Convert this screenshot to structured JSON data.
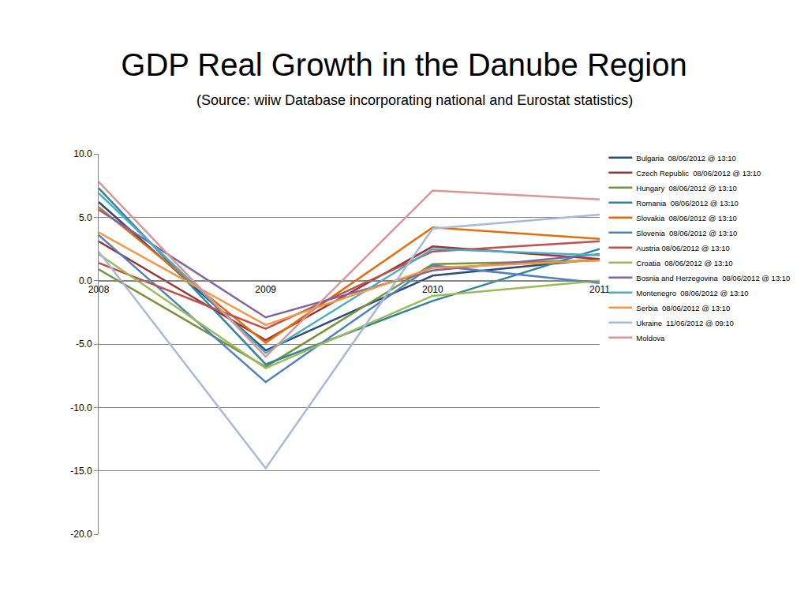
{
  "chart_data": {
    "type": "line",
    "title": "GDP Real Growth in the Danube Region",
    "subtitle": "(Source: wiiw Database incorporating national and Eurostat statistics)",
    "categories": [
      "2008",
      "2009",
      "2010",
      "2011"
    ],
    "series": [
      {
        "name": "Bulgaria  08/06/2012 @ 13:10",
        "color": "#2C4D75",
        "values": [
          6.2,
          -5.5,
          0.4,
          1.7
        ]
      },
      {
        "name": "Czech Republic  08/06/2012 @ 13:10",
        "color": "#953735",
        "values": [
          3.1,
          -4.7,
          2.7,
          1.7
        ]
      },
      {
        "name": "Hungary  08/06/2012 @ 13:10",
        "color": "#77933C",
        "values": [
          0.9,
          -6.8,
          1.3,
          1.6
        ]
      },
      {
        "name": "Romania  08/06/2012 @ 13:10",
        "color": "#31859C",
        "values": [
          7.3,
          -6.6,
          -1.6,
          2.5
        ]
      },
      {
        "name": "Slovakia  08/06/2012 @ 13:10",
        "color": "#E46C0A",
        "values": [
          5.8,
          -4.9,
          4.2,
          3.3
        ]
      },
      {
        "name": "Slovenia  08/06/2012 @ 13:10",
        "color": "#4F81BD",
        "values": [
          3.6,
          -8.0,
          1.2,
          -0.2
        ]
      },
      {
        "name": "Austria 08/06/2012 @ 13:10",
        "color": "#C0504D",
        "values": [
          1.4,
          -3.8,
          2.3,
          3.1
        ]
      },
      {
        "name": "Croatia  08/06/2012 @ 13:10",
        "color": "#9BBB59",
        "values": [
          2.1,
          -6.9,
          -1.2,
          0.0
        ]
      },
      {
        "name": "Bosnia and Herzegovina  08/06/2012 @ 13:10",
        "color": "#8064A2",
        "values": [
          5.6,
          -2.9,
          0.8,
          2.1
        ]
      },
      {
        "name": "Montenegro  08/06/2012 @ 13:10",
        "color": "#4BACC6",
        "values": [
          6.9,
          -5.7,
          2.5,
          2.0
        ]
      },
      {
        "name": "Serbia  08/06/2012 @ 13:10",
        "color": "#F79646",
        "values": [
          3.8,
          -3.5,
          1.0,
          1.6
        ]
      },
      {
        "name": "Ukraine  11/06/2012 @ 09:10",
        "color": "#A6B9D8",
        "values": [
          2.3,
          -14.8,
          4.1,
          5.2
        ]
      },
      {
        "name": "Moldova",
        "color": "#D99694",
        "values": [
          7.8,
          -6.0,
          7.1,
          6.4
        ]
      }
    ],
    "ylim": [
      -20,
      10
    ],
    "yticks": [
      {
        "value": -20,
        "label": "-20.0"
      },
      {
        "value": -15,
        "label": "-15.0"
      },
      {
        "value": -10,
        "label": "-10.0"
      },
      {
        "value": -5,
        "label": "-5.0"
      },
      {
        "value": 0,
        "label": "0.0"
      },
      {
        "value": 5,
        "label": "5.0"
      },
      {
        "value": 10,
        "label": "10.0"
      }
    ],
    "grid": true,
    "legend": "right"
  }
}
